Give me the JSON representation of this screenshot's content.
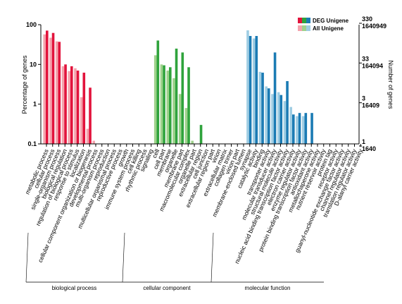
{
  "chart_data": {
    "type": "bar",
    "ylabel": "Percentage of genes",
    "y2label": "Number of genes",
    "scale": "log",
    "ylim": [
      0.1,
      100
    ],
    "left_ticks": [
      "100",
      "10",
      "1",
      "0.1"
    ],
    "right_ticks": [
      {
        "a": "330",
        "b": "1640949"
      },
      {
        "a": "33",
        "b": "164094"
      },
      {
        "a": "3",
        "b": "16409"
      },
      {
        "a": "1",
        "b": "1640"
      }
    ],
    "legend": [
      "DEG Unigene",
      "All Unigene"
    ],
    "colors": {
      "biological process": [
        "#e2133c",
        "#f4a3ad"
      ],
      "cellular component": [
        "#2fa33c",
        "#9fd28c"
      ],
      "molecular function": [
        "#1b7bb4",
        "#9fcde3"
      ]
    },
    "groups": [
      {
        "name": "biological process",
        "categories": [
          {
            "label": "metabolic process",
            "deg": 71,
            "all": 57
          },
          {
            "label": "cellular process",
            "deg": 62,
            "all": 47
          },
          {
            "label": "single-organism process",
            "deg": 37,
            "all": 38
          },
          {
            "label": "biological regulation",
            "deg": 10,
            "all": 9
          },
          {
            "label": "regulation of biological process",
            "deg": 9,
            "all": 6.8
          },
          {
            "label": "response to stimulus",
            "deg": 7,
            "all": 8
          },
          {
            "label": "localization",
            "deg": 6.2,
            "all": 1.5
          },
          {
            "label": "cellular component organization or biogenesis",
            "deg": 2.6,
            "all": 0.24
          },
          {
            "label": "developmental process",
            "deg": null,
            "all": 0.12
          },
          {
            "label": "multi-organism process",
            "deg": null,
            "all": null
          },
          {
            "label": "reproduction",
            "deg": null,
            "all": null
          },
          {
            "label": "multicellular organismal process",
            "deg": null,
            "all": null
          },
          {
            "label": "reproductive process",
            "deg": null,
            "all": null
          },
          {
            "label": "growth",
            "deg": null,
            "all": null
          },
          {
            "label": "immune system process",
            "deg": null,
            "all": null
          },
          {
            "label": "cell killing",
            "deg": null,
            "all": null
          },
          {
            "label": "rhythmic process",
            "deg": null,
            "all": null
          },
          {
            "label": "signaling",
            "deg": null,
            "all": null
          }
        ]
      },
      {
        "name": "cellular component",
        "categories": [
          {
            "label": "cell",
            "deg": 40,
            "all": 17
          },
          {
            "label": "cell part",
            "deg": 9.5,
            "all": 10
          },
          {
            "label": "membrane",
            "deg": 8.5,
            "all": 7
          },
          {
            "label": "organelle",
            "deg": 25,
            "all": 4.5
          },
          {
            "label": "membrane part",
            "deg": 20,
            "all": 1.8
          },
          {
            "label": "macromolecular complex",
            "deg": 8.5,
            "all": 0.8
          },
          {
            "label": "organelle part",
            "deg": null,
            "all": 0.12
          },
          {
            "label": "extracellular region",
            "deg": 0.3,
            "all": null
          },
          {
            "label": "cell junction",
            "deg": null,
            "all": null
          },
          {
            "label": "extracellular region part",
            "deg": null,
            "all": null
          },
          {
            "label": "virion",
            "deg": null,
            "all": null
          },
          {
            "label": "extracellular matrix",
            "deg": null,
            "all": null
          },
          {
            "label": "collagen trimer",
            "deg": null,
            "all": null
          },
          {
            "label": "virion part",
            "deg": null,
            "all": null
          },
          {
            "label": "membrane-enclosed lumen",
            "deg": null,
            "all": null
          }
        ]
      },
      {
        "name": "molecular function",
        "categories": [
          {
            "label": "synapse",
            "deg": 52,
            "all": 72
          },
          {
            "label": "catalytic activity",
            "deg": 52,
            "all": 45
          },
          {
            "label": "binding",
            "deg": 6.2,
            "all": 6.5
          },
          {
            "label": "transporter activity",
            "deg": 2.5,
            "all": 2.8
          },
          {
            "label": "molecular transducer activity",
            "deg": 20,
            "all": 1.8
          },
          {
            "label": "structural molecule activity",
            "deg": 1.7,
            "all": 2.0
          },
          {
            "label": "nucleic acid binding transcription factor activity",
            "deg": 3.8,
            "all": 1.2
          },
          {
            "label": "electron carrier activity",
            "deg": 0.55,
            "all": 0.85
          },
          {
            "label": "enzyme regulator activity",
            "deg": 0.6,
            "all": 0.5
          },
          {
            "label": "protein binding transcription factor activity",
            "deg": 0.6,
            "all": 0.5
          },
          {
            "label": "antioxidant activity",
            "deg": 0.6,
            "all": null
          },
          {
            "label": "metallochaperone activity",
            "deg": null,
            "all": null
          },
          {
            "label": "nutrient reservoir activity",
            "deg": null,
            "all": null
          },
          {
            "label": "protein tag",
            "deg": null,
            "all": null
          },
          {
            "label": "receptor activity",
            "deg": null,
            "all": null
          },
          {
            "label": "guanyl-nucleotide exchange factor activity",
            "deg": null,
            "all": null
          },
          {
            "label": "channel regulator activity",
            "deg": null,
            "all": null
          },
          {
            "label": "translation regulator activity",
            "deg": null,
            "all": null
          },
          {
            "label": "D-alanyl carrier activity",
            "deg": null,
            "all": null
          }
        ]
      }
    ]
  }
}
